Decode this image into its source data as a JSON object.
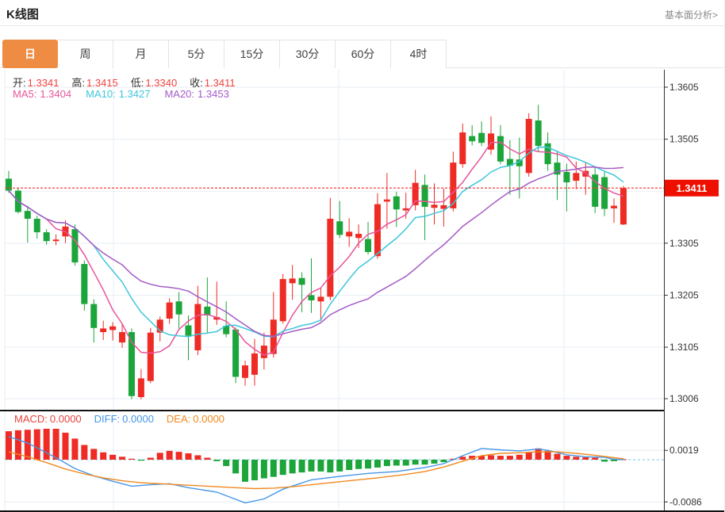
{
  "header": {
    "title": "K线图",
    "link": "基本面分析>"
  },
  "tabs": {
    "items": [
      {
        "label": "日",
        "active": true
      },
      {
        "label": "周",
        "active": false
      },
      {
        "label": "月",
        "active": false
      },
      {
        "label": "5分",
        "active": false
      },
      {
        "label": "15分",
        "active": false
      },
      {
        "label": "30分",
        "active": false
      },
      {
        "label": "60分",
        "active": false
      },
      {
        "label": "4时",
        "active": false
      }
    ]
  },
  "legend": {
    "open_label": "开:",
    "open_value": "1.3341",
    "high_label": "高:",
    "high_value": "1.3415",
    "low_label": "低:",
    "low_value": "1.3340",
    "close_label": "收:",
    "close_value": "1.3411",
    "ma5_label": "MA5:",
    "ma5_value": "1.3404",
    "ma10_label": "MA10:",
    "ma10_value": "1.3427",
    "ma20_label": "MA20:",
    "ma20_value": "1.3453"
  },
  "macd_legend": {
    "macd_label": "MACD:",
    "macd_value": "0.0000",
    "diff_label": "DIFF:",
    "diff_value": "0.0000",
    "dea_label": "DEA:",
    "dea_value": "0.0000"
  },
  "colors": {
    "up": "#ee2b24",
    "down": "#1ba53a",
    "ma5": "#e8549b",
    "ma10": "#3ec6dc",
    "ma20": "#a55bc5",
    "diff": "#4596e8",
    "dea": "#f0891e",
    "grid": "#e7eef4",
    "axis": "#333333",
    "last_price": "#f0413c",
    "badge_bg": "#ee0f00",
    "macd_zero_line": "#9fdbe8",
    "tab_active": "#ef8c44"
  },
  "chart_data": {
    "type": "candlestick_with_macd",
    "title": "K线图",
    "period": "日",
    "legend_position": "top-left-inside",
    "grid": true,
    "price_axis_range": [
      1.2983,
      1.3639
    ],
    "macd_axis_range": [
      -0.0105,
      0.0097
    ],
    "price_axis_ticks": [
      {
        "v": 1.3605,
        "label": "1.3605"
      },
      {
        "v": 1.3505,
        "label": "1.3505"
      },
      {
        "v": 1.3305,
        "label": "1.3305"
      },
      {
        "v": 1.3205,
        "label": "1.3205"
      },
      {
        "v": 1.3105,
        "label": "1.3105"
      },
      {
        "v": 1.3006,
        "label": "1.3006"
      }
    ],
    "price_gridlines": [
      1.3605,
      1.3505,
      1.3405,
      1.3305,
      1.3205,
      1.3105,
      1.3006
    ],
    "vertical_gridlines_x": [
      143,
      427,
      711
    ],
    "last_price": {
      "value": 1.3411,
      "label": "1.3411"
    },
    "ma_periods": [
      5,
      10,
      20
    ],
    "candles": [
      [
        1.3429,
        1.3444,
        1.3402,
        1.3406
      ],
      [
        1.3406,
        1.3412,
        1.3362,
        1.3365
      ],
      [
        1.3367,
        1.3377,
        1.3306,
        1.3352
      ],
      [
        1.3352,
        1.3358,
        1.3314,
        1.3326
      ],
      [
        1.3326,
        1.3332,
        1.3302,
        1.3309
      ],
      [
        1.3309,
        1.3322,
        1.3301,
        1.3312
      ],
      [
        1.3318,
        1.3349,
        1.3305,
        1.3337
      ],
      [
        1.3332,
        1.3341,
        1.3262,
        1.3268
      ],
      [
        1.3265,
        1.3272,
        1.3175,
        1.3188
      ],
      [
        1.3188,
        1.3197,
        1.3114,
        1.3142
      ],
      [
        1.3134,
        1.3156,
        1.3119,
        1.3141
      ],
      [
        1.3138,
        1.3153,
        1.3118,
        1.3145
      ],
      [
        1.3114,
        1.315,
        1.3104,
        1.3134
      ],
      [
        1.3134,
        1.3141,
        1.3005,
        1.3011
      ],
      [
        1.3009,
        1.3063,
        1.3005,
        1.3045
      ],
      [
        1.304,
        1.3142,
        1.3036,
        1.3133
      ],
      [
        1.3133,
        1.3164,
        1.3116,
        1.3158
      ],
      [
        1.316,
        1.3199,
        1.315,
        1.3191
      ],
      [
        1.3193,
        1.3211,
        1.3141,
        1.3168
      ],
      [
        1.3147,
        1.3166,
        1.308,
        1.3127
      ],
      [
        1.3099,
        1.3223,
        1.309,
        1.3188
      ],
      [
        1.3183,
        1.3239,
        1.3131,
        1.3166
      ],
      [
        1.3158,
        1.3231,
        1.3148,
        1.3163
      ],
      [
        1.3146,
        1.3193,
        1.3124,
        1.313
      ],
      [
        1.3139,
        1.3143,
        1.3036,
        1.3048
      ],
      [
        1.3046,
        1.3079,
        1.3031,
        1.307
      ],
      [
        1.3052,
        1.3121,
        1.3031,
        1.3093
      ],
      [
        1.3084,
        1.3133,
        1.3062,
        1.3108
      ],
      [
        1.3092,
        1.3211,
        1.3085,
        1.3158
      ],
      [
        1.3155,
        1.3246,
        1.315,
        1.3236
      ],
      [
        1.3228,
        1.3263,
        1.3196,
        1.3237
      ],
      [
        1.3238,
        1.3249,
        1.3172,
        1.3225
      ],
      [
        1.3205,
        1.3276,
        1.3171,
        1.3195
      ],
      [
        1.3193,
        1.3219,
        1.3155,
        1.3202
      ],
      [
        1.3202,
        1.3392,
        1.3195,
        1.3352
      ],
      [
        1.3347,
        1.3386,
        1.3315,
        1.3321
      ],
      [
        1.3318,
        1.3353,
        1.3298,
        1.3327
      ],
      [
        1.3315,
        1.3341,
        1.3296,
        1.3323
      ],
      [
        1.3313,
        1.3346,
        1.3283,
        1.3288
      ],
      [
        1.328,
        1.3401,
        1.3275,
        1.338
      ],
      [
        1.3385,
        1.344,
        1.3333,
        1.3389
      ],
      [
        1.3395,
        1.3404,
        1.3336,
        1.337
      ],
      [
        1.3368,
        1.3402,
        1.3352,
        1.3372
      ],
      [
        1.3378,
        1.3446,
        1.3368,
        1.3421
      ],
      [
        1.3417,
        1.3437,
        1.3311,
        1.3375
      ],
      [
        1.3373,
        1.342,
        1.3341,
        1.3379
      ],
      [
        1.3371,
        1.341,
        1.3337,
        1.3378
      ],
      [
        1.3372,
        1.3481,
        1.3366,
        1.346
      ],
      [
        1.3457,
        1.3535,
        1.345,
        1.3518
      ],
      [
        1.3511,
        1.3532,
        1.3493,
        1.3501
      ],
      [
        1.3517,
        1.3539,
        1.3492,
        1.3498
      ],
      [
        1.3485,
        1.3549,
        1.3475,
        1.3516
      ],
      [
        1.3511,
        1.3532,
        1.3457,
        1.3462
      ],
      [
        1.3467,
        1.3503,
        1.3398,
        1.3454
      ],
      [
        1.3466,
        1.3508,
        1.3391,
        1.3453
      ],
      [
        1.344,
        1.3555,
        1.3433,
        1.3544
      ],
      [
        1.3541,
        1.3571,
        1.3481,
        1.3492
      ],
      [
        1.3497,
        1.3518,
        1.3444,
        1.3457
      ],
      [
        1.346,
        1.3483,
        1.3388,
        1.3437
      ],
      [
        1.3442,
        1.3458,
        1.3366,
        1.3422
      ],
      [
        1.3425,
        1.3462,
        1.3409,
        1.344
      ],
      [
        1.3433,
        1.3461,
        1.3398,
        1.3444
      ],
      [
        1.3437,
        1.3453,
        1.3363,
        1.3375
      ],
      [
        1.3432,
        1.3442,
        1.3357,
        1.3371
      ],
      [
        1.3372,
        1.3391,
        1.3344,
        1.3377
      ],
      [
        1.3341,
        1.3415,
        1.334,
        1.3411
      ]
    ],
    "macd_axis_ticks": [
      {
        "v": 0.0019,
        "label": "0.0019"
      },
      {
        "v": -0.0086,
        "label": "-0.0086"
      }
    ],
    "macd_hist": [
      0.0058,
      0.006,
      0.0061,
      0.0062,
      0.0063,
      0.0063,
      0.0055,
      0.0043,
      0.003,
      0.0022,
      0.0015,
      0.001,
      0.0006,
      0.0002,
      -0.0002,
      0.0004,
      0.0014,
      0.0018,
      0.0016,
      0.0013,
      0.0009,
      0.0004,
      -0.0003,
      -0.0013,
      -0.0028,
      -0.0045,
      -0.0042,
      -0.0038,
      -0.0035,
      -0.0031,
      -0.0028,
      -0.0026,
      -0.0024,
      -0.0024,
      -0.0026,
      -0.0024,
      -0.0021,
      -0.0019,
      -0.0018,
      -0.0016,
      -0.0013,
      -0.0012,
      -0.0012,
      -0.001,
      -0.001,
      -0.0008,
      -0.0005,
      0.0002,
      0.0006,
      0.0008,
      0.0008,
      0.0009,
      0.0008,
      0.0008,
      0.001,
      0.0015,
      0.0023,
      0.0018,
      0.0012,
      0.0008,
      0.0006,
      0.0005,
      0.0004,
      -0.0004,
      -0.0003,
      0.0001
    ],
    "diff_points": [
      [
        1,
        0.0047
      ],
      [
        3,
        0.0034
      ],
      [
        5,
        0.0014
      ],
      [
        6,
        0.0004
      ],
      [
        8,
        -0.0018
      ],
      [
        10,
        -0.0033
      ],
      [
        12,
        -0.0044
      ],
      [
        14,
        -0.0054
      ],
      [
        16,
        -0.0051
      ],
      [
        18,
        -0.0049
      ],
      [
        20,
        -0.0057
      ],
      [
        23,
        -0.0066
      ],
      [
        26,
        -0.0088
      ],
      [
        28,
        -0.008
      ],
      [
        30,
        -0.006
      ],
      [
        33,
        -0.0041
      ],
      [
        36,
        -0.0034
      ],
      [
        39,
        -0.0028
      ],
      [
        42,
        -0.0024
      ],
      [
        45,
        -0.0016
      ],
      [
        47,
        -0.0008
      ],
      [
        49,
        0.0008
      ],
      [
        51,
        0.0023
      ],
      [
        53,
        0.002
      ],
      [
        55,
        0.0018
      ],
      [
        57,
        0.0022
      ],
      [
        58,
        0.0019
      ],
      [
        60,
        0.001
      ],
      [
        62,
        0.0006
      ],
      [
        64,
        0.0005
      ],
      [
        65,
        0.0001
      ],
      [
        66,
        0.0
      ]
    ],
    "dea_points": [
      [
        1,
        0.0016
      ],
      [
        3,
        0.0006
      ],
      [
        5,
        -0.0006
      ],
      [
        7,
        -0.0019
      ],
      [
        9,
        -0.0029
      ],
      [
        11,
        -0.0037
      ],
      [
        13,
        -0.0043
      ],
      [
        15,
        -0.0047
      ],
      [
        17,
        -0.0049
      ],
      [
        19,
        -0.0051
      ],
      [
        22,
        -0.0054
      ],
      [
        25,
        -0.0057
      ],
      [
        27,
        -0.0059
      ],
      [
        29,
        -0.0058
      ],
      [
        31,
        -0.0055
      ],
      [
        34,
        -0.0049
      ],
      [
        37,
        -0.0043
      ],
      [
        40,
        -0.0037
      ],
      [
        43,
        -0.003
      ],
      [
        45,
        -0.0024
      ],
      [
        47,
        -0.0015
      ],
      [
        49,
        -0.0003
      ],
      [
        51,
        0.0008
      ],
      [
        53,
        0.0013
      ],
      [
        55,
        0.0014
      ],
      [
        57,
        0.0016
      ],
      [
        59,
        0.0016
      ],
      [
        61,
        0.0013
      ],
      [
        63,
        0.0009
      ],
      [
        65,
        0.0004
      ],
      [
        66,
        0.0002
      ]
    ]
  }
}
